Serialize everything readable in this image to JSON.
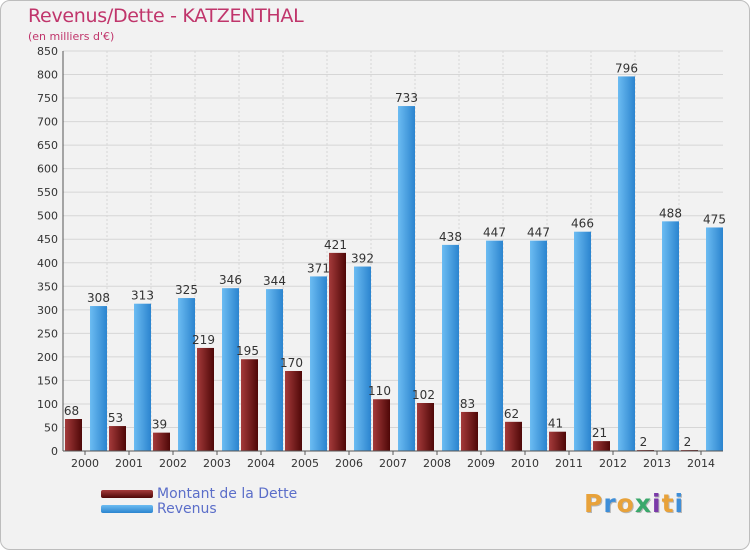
{
  "header": {
    "title": "Revenus/Dette - KATZENTHAL",
    "subtitle": "(en milliers d'€)"
  },
  "chart_data": {
    "type": "bar",
    "categories": [
      "2000",
      "2001",
      "2002",
      "2003",
      "2004",
      "2005",
      "2006",
      "2007",
      "2008",
      "2009",
      "2010",
      "2011",
      "2012",
      "2013",
      "2014"
    ],
    "series": [
      {
        "name": "Montant de la Dette",
        "color": "#7a1a1a",
        "values": [
          68,
          53,
          39,
          219,
          195,
          170,
          421,
          110,
          102,
          83,
          62,
          41,
          21,
          2,
          2
        ]
      },
      {
        "name": "Revenus",
        "color": "#4aa3e6",
        "values": [
          308,
          313,
          325,
          346,
          344,
          371,
          392,
          733,
          438,
          447,
          447,
          466,
          796,
          488,
          475
        ]
      }
    ],
    "ylim": [
      0,
      850
    ],
    "yticks": [
      0,
      50,
      100,
      150,
      200,
      250,
      300,
      350,
      400,
      450,
      500,
      550,
      600,
      650,
      700,
      750,
      800,
      850
    ],
    "grid": true,
    "legend": "bottom-left"
  },
  "legend": {
    "items": [
      {
        "label": "Montant de la Dette",
        "color": "#7a1a1a"
      },
      {
        "label": "Revenus",
        "color": "#4aa3e6"
      }
    ]
  },
  "brand": {
    "letters": [
      "P",
      "r",
      "o",
      "x",
      "i",
      "t",
      "i"
    ],
    "colors": [
      "#e8a23a",
      "#3e8ed8",
      "#e8a23a",
      "#3aa86b",
      "#7a3aa8",
      "#e8a23a",
      "#3e8ed8"
    ]
  }
}
